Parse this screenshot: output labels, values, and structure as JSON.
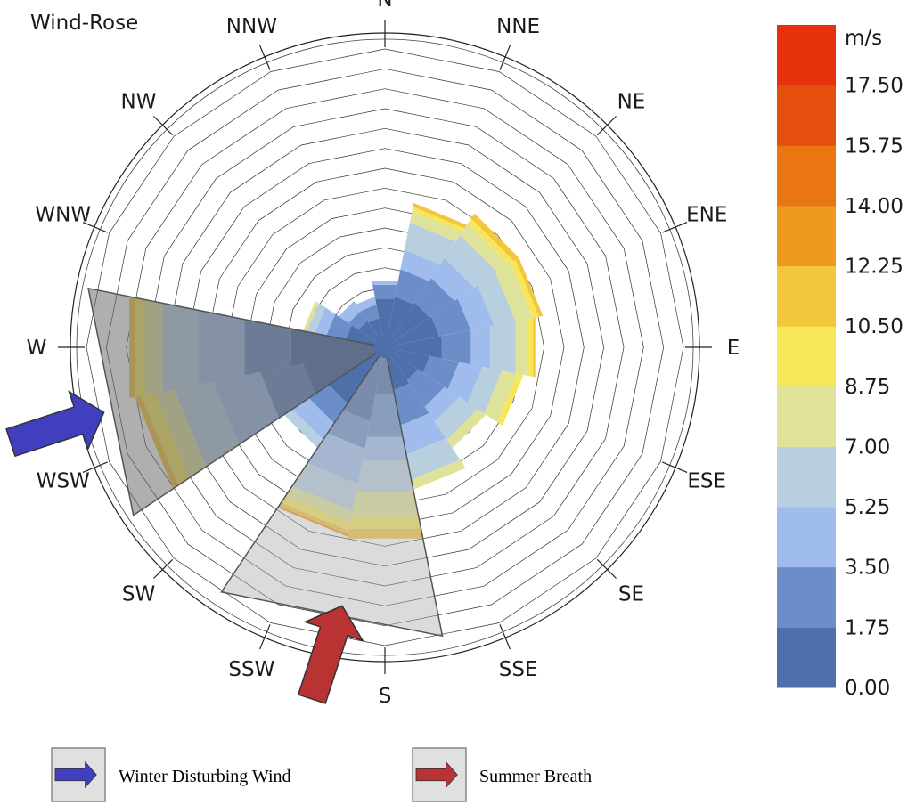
{
  "chart_data": {
    "type": "wind-rose",
    "title": "Wind-Rose",
    "directions": [
      "N",
      "NNE",
      "NE",
      "ENE",
      "E",
      "ESE",
      "SE",
      "SSE",
      "S",
      "SSW",
      "SW",
      "WSW",
      "W",
      "WNW",
      "NW",
      "NNW"
    ],
    "colorbar": {
      "unit": "m/s",
      "ticks": [
        "17.50",
        "15.75",
        "14.00",
        "12.25",
        "10.50",
        "8.75",
        "7.00",
        "5.25",
        "3.50",
        "1.75",
        "0.00"
      ],
      "colors": [
        "#4f6fab",
        "#6b8ec9",
        "#9fbcec",
        "#b8cfe0",
        "#dfe39a",
        "#f7e65a",
        "#f4c63c",
        "#ef9a1f",
        "#ea7613",
        "#e54f0e",
        "#e6320c"
      ]
    },
    "rmax": 15,
    "series": [
      {
        "direction": "N",
        "speed_bins": [
          2.5,
          3.2,
          3.4
        ]
      },
      {
        "direction": "NNE",
        "speed_bins": [
          2.6,
          4.0,
          5.0,
          6.4,
          7.0,
          7.2,
          7.4
        ]
      },
      {
        "direction": "NE",
        "speed_bins": [
          2.7,
          4.2,
          5.4,
          6.8,
          7.5,
          7.8,
          8.1
        ]
      },
      {
        "direction": "ENE",
        "speed_bins": [
          2.8,
          4.4,
          5.6,
          6.7,
          7.6,
          7.9,
          8.1
        ]
      },
      {
        "direction": "E",
        "speed_bins": [
          2.9,
          4.4,
          5.4,
          6.7,
          7.3,
          7.6,
          7.7
        ]
      },
      {
        "direction": "ESE",
        "speed_bins": [
          2.3,
          3.8,
          5.0,
          6.0,
          6.8,
          7.1
        ]
      },
      {
        "direction": "SE",
        "speed_bins": [
          2.0,
          3.6,
          4.5,
          5.6,
          6.1
        ]
      },
      {
        "direction": "SSE",
        "speed_bins": [
          2.2,
          4.0,
          5.5,
          6.8,
          7.3
        ]
      },
      {
        "direction": "S",
        "speed_bins": [
          2.4,
          4.6,
          5.8,
          7.4,
          8.7,
          9.3,
          9.8
        ]
      },
      {
        "direction": "SSW",
        "speed_bins": [
          3.8,
          5.2,
          7.0,
          8.4,
          9.0,
          9.4,
          9.6,
          9.7
        ]
      },
      {
        "direction": "SW",
        "speed_bins": [
          3.4,
          4.6,
          5.6,
          6.1
        ]
      },
      {
        "direction": "WSW",
        "speed_bins": [
          4.2,
          6.4,
          8.8,
          10.8,
          11.8,
          12.5,
          12.8
        ]
      },
      {
        "direction": "W",
        "speed_bins": [
          4.8,
          7.2,
          9.6,
          11.4,
          12.3,
          12.8,
          13.1
        ]
      },
      {
        "direction": "WNW",
        "speed_bins": [
          2.0,
          3.0,
          3.6,
          4.0,
          4.2
        ]
      },
      {
        "direction": "NW",
        "speed_bins": [
          1.6,
          2.2,
          2.8
        ]
      },
      {
        "direction": "NNW",
        "speed_bins": [
          1.5,
          2.2,
          2.6
        ]
      }
    ],
    "highlight_sectors": [
      {
        "name": "winter",
        "from_deg": 236.25,
        "to_deg": 281.25,
        "r": 15.2
      },
      {
        "name": "summer",
        "from_deg": 168.75,
        "to_deg": 213.75,
        "r": 14.8
      }
    ],
    "legend": [
      {
        "label": "Winter Disturbing Wind",
        "arrow_color": "#3f3fbf"
      },
      {
        "label": "Summer Breath",
        "arrow_color": "#b93333"
      }
    ]
  }
}
